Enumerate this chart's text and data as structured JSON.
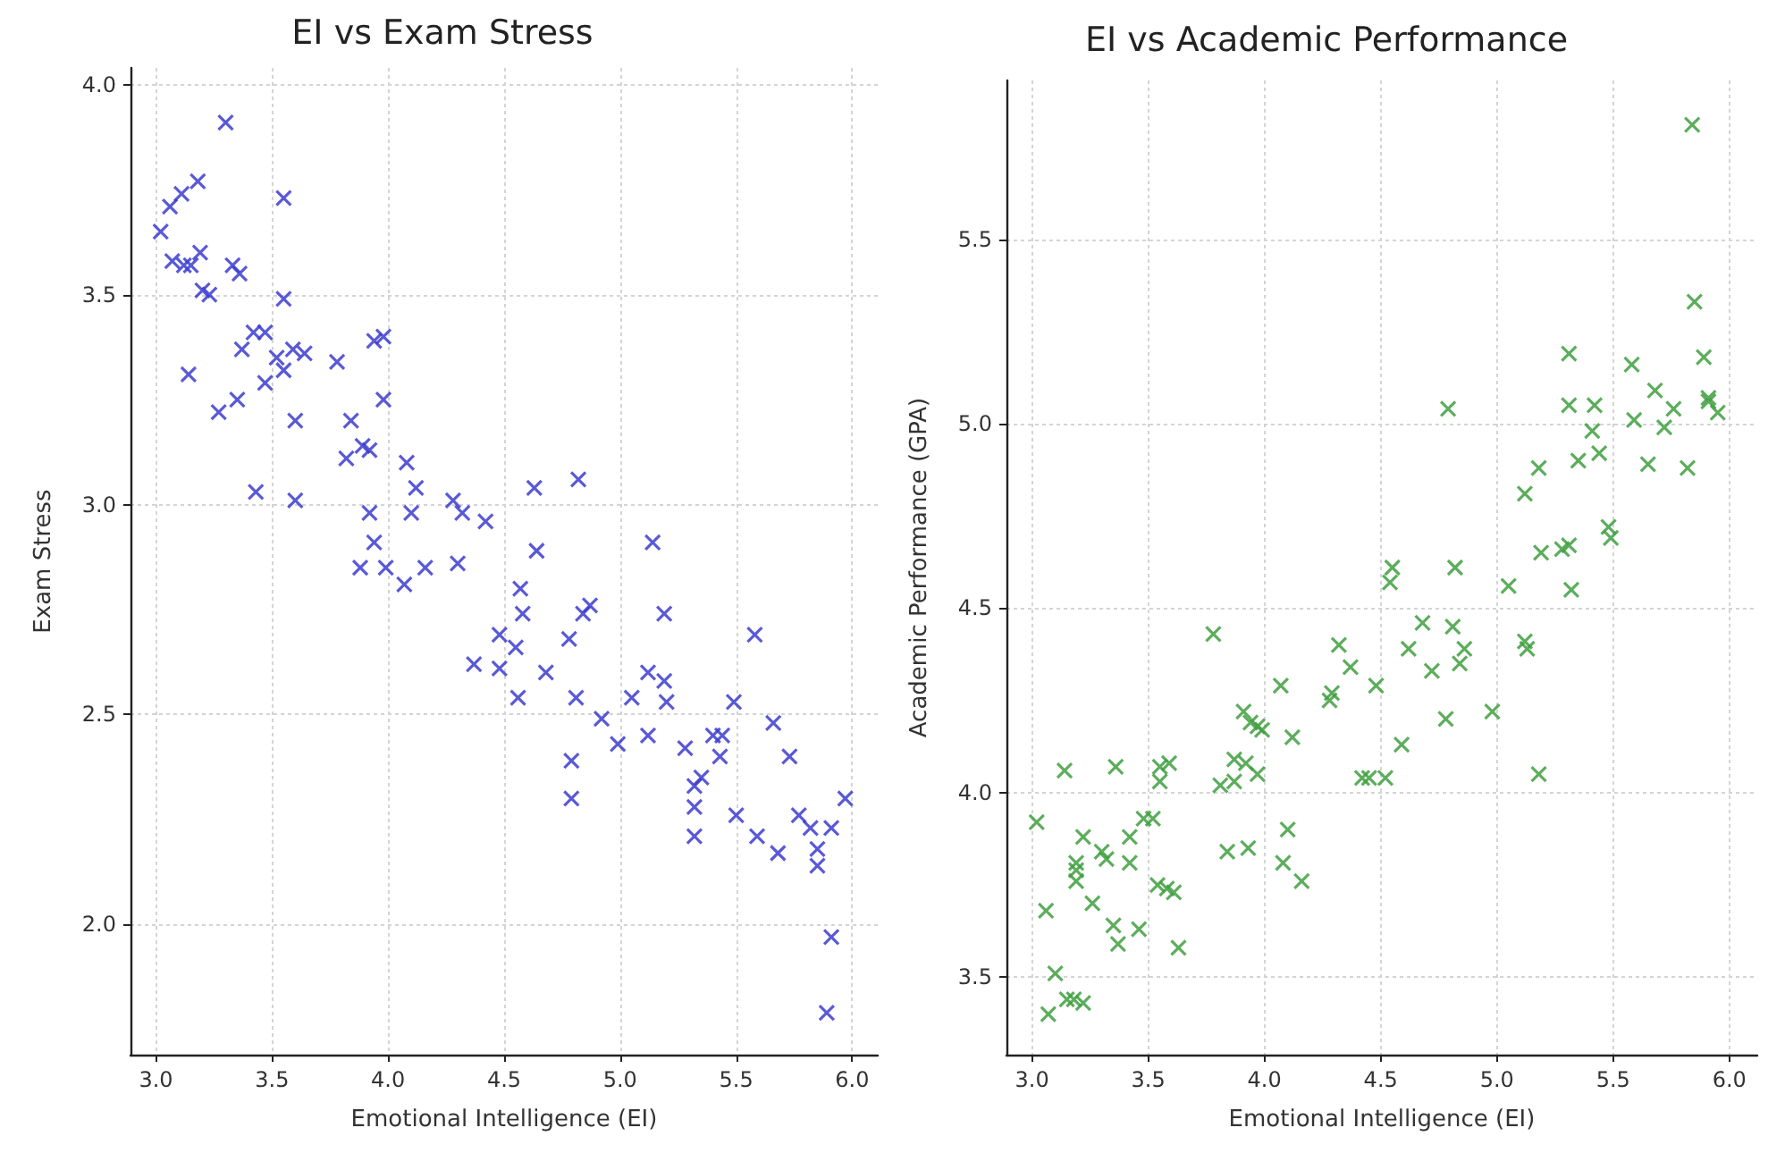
{
  "chart_data": [
    {
      "type": "scatter",
      "title": "EI vs Exam Stress",
      "xlabel": "Emotional Intelligence (EI)",
      "ylabel": "Exam Stress",
      "marker": "cross",
      "grid": true,
      "legend": false,
      "xlim": [
        2.89,
        6.11
      ],
      "ylim": [
        1.69,
        4.04
      ],
      "xticks": [
        {
          "value": 3,
          "label": "3.0"
        },
        {
          "value": 3.5,
          "label": "3.5"
        },
        {
          "value": 4,
          "label": "4.0"
        },
        {
          "value": 4.5,
          "label": "4.5"
        },
        {
          "value": 5,
          "label": "5.0"
        },
        {
          "value": 5.5,
          "label": "5.5"
        },
        {
          "value": 6,
          "label": "6.0"
        }
      ],
      "yticks": [
        {
          "value": 2,
          "label": "2.0"
        },
        {
          "value": 2.5,
          "label": "2.5"
        },
        {
          "value": 3,
          "label": "3.0"
        },
        {
          "value": 3.5,
          "label": "3.5"
        },
        {
          "value": 4,
          "label": "4.0"
        }
      ],
      "series": [
        {
          "color": "#3c3cd0",
          "x": [
            3.02,
            3.06,
            3.11,
            3.18,
            3.3,
            3.55,
            3.07,
            3.12,
            3.15,
            3.19,
            3.2,
            3.23,
            3.33,
            3.36,
            3.55,
            3.14,
            3.27,
            3.35,
            3.37,
            3.42,
            3.47,
            3.47,
            3.52,
            3.55,
            3.59,
            3.64,
            3.43,
            3.6,
            3.6,
            3.78,
            3.84,
            3.82,
            3.89,
            3.92,
            3.94,
            3.98,
            3.98,
            3.92,
            3.94,
            3.88,
            3.99,
            4.08,
            4.12,
            4.1,
            4.28,
            4.32,
            4.42,
            4.16,
            4.3,
            4.07,
            4.63,
            4.82,
            4.64,
            5.14,
            5.19,
            4.57,
            4.58,
            4.84,
            4.87,
            4.48,
            4.55,
            4.37,
            4.48,
            4.68,
            4.78,
            4.56,
            4.81,
            4.92,
            4.99,
            5.05,
            5.12,
            5.12,
            5.19,
            5.2,
            4.79,
            4.79,
            5.28,
            5.32,
            5.35,
            5.32,
            5.32,
            5.4,
            5.44,
            5.43,
            5.49,
            5.58,
            5.66,
            5.73,
            5.5,
            5.59,
            5.68,
            5.77,
            5.82,
            5.91,
            5.85,
            5.85,
            5.97,
            5.91,
            5.89
          ],
          "values": [
            3.65,
            3.71,
            3.74,
            3.77,
            3.91,
            3.73,
            3.58,
            3.57,
            3.57,
            3.6,
            3.51,
            3.5,
            3.57,
            3.55,
            3.49,
            3.31,
            3.22,
            3.25,
            3.37,
            3.41,
            3.41,
            3.29,
            3.35,
            3.32,
            3.37,
            3.36,
            3.03,
            3.01,
            3.2,
            3.34,
            3.2,
            3.11,
            3.14,
            3.13,
            3.39,
            3.4,
            3.25,
            2.98,
            2.91,
            2.85,
            2.85,
            3.1,
            3.04,
            2.98,
            3.01,
            2.98,
            2.96,
            2.85,
            2.86,
            2.81,
            3.04,
            3.06,
            2.89,
            2.91,
            2.74,
            2.8,
            2.74,
            2.74,
            2.76,
            2.69,
            2.66,
            2.62,
            2.61,
            2.6,
            2.68,
            2.54,
            2.54,
            2.49,
            2.43,
            2.54,
            2.45,
            2.6,
            2.58,
            2.53,
            2.39,
            2.3,
            2.42,
            2.33,
            2.35,
            2.28,
            2.21,
            2.45,
            2.45,
            2.4,
            2.53,
            2.69,
            2.48,
            2.4,
            2.26,
            2.21,
            2.17,
            2.26,
            2.23,
            2.23,
            2.18,
            2.14,
            2.3,
            1.97,
            1.79
          ]
        }
      ]
    },
    {
      "type": "scatter",
      "title": "EI vs Academic Performance",
      "xlabel": "Emotional Intelligence (EI)",
      "ylabel": "Academic Performance (GPA)",
      "marker": "cross",
      "grid": true,
      "legend": false,
      "xlim": [
        2.89,
        6.12
      ],
      "ylim": [
        3.29,
        5.93
      ],
      "xticks": [
        {
          "value": 3,
          "label": "3.0"
        },
        {
          "value": 3.5,
          "label": "3.5"
        },
        {
          "value": 4,
          "label": "4.0"
        },
        {
          "value": 4.5,
          "label": "4.5"
        },
        {
          "value": 5,
          "label": "5.0"
        },
        {
          "value": 5.5,
          "label": "5.5"
        },
        {
          "value": 6,
          "label": "6.0"
        }
      ],
      "yticks": [
        {
          "value": 3.5,
          "label": "3.5"
        },
        {
          "value": 4,
          "label": "4.0"
        },
        {
          "value": 4.5,
          "label": "4.5"
        },
        {
          "value": 5,
          "label": "5.0"
        },
        {
          "value": 5.5,
          "label": "5.5"
        }
      ],
      "series": [
        {
          "color": "#3f9f3f",
          "x": [
            3.02,
            3.06,
            3.1,
            3.07,
            3.15,
            3.18,
            3.22,
            3.14,
            3.19,
            3.19,
            3.19,
            3.22,
            3.26,
            3.3,
            3.32,
            3.35,
            3.37,
            3.36,
            3.42,
            3.42,
            3.46,
            3.48,
            3.52,
            3.55,
            3.55,
            3.59,
            3.54,
            3.58,
            3.61,
            3.63,
            3.78,
            3.84,
            3.81,
            3.87,
            3.87,
            3.92,
            3.93,
            3.91,
            3.94,
            3.97,
            3.99,
            3.97,
            4.07,
            4.12,
            4.1,
            4.08,
            4.16,
            4.28,
            4.29,
            4.32,
            4.37,
            4.48,
            4.42,
            4.45,
            4.52,
            5.84,
            5.85,
            5.31,
            5.58,
            5.89,
            4.79,
            5.31,
            5.42,
            5.68,
            5.76,
            5.91,
            5.91,
            5.95,
            5.41,
            5.59,
            5.72,
            5.44,
            5.35,
            5.65,
            5.82,
            5.18,
            5.12,
            5.48,
            5.49,
            5.19,
            5.28,
            5.31,
            5.32,
            5.05,
            4.55,
            4.54,
            4.82,
            4.68,
            4.81,
            4.62,
            4.86,
            5.12,
            5.13,
            4.72,
            4.84,
            4.59,
            5.18,
            4.98,
            4.78
          ],
          "values": [
            3.92,
            3.68,
            3.51,
            3.4,
            3.44,
            3.44,
            3.43,
            4.06,
            3.81,
            3.79,
            3.76,
            3.88,
            3.7,
            3.84,
            3.82,
            3.64,
            3.59,
            4.07,
            3.88,
            3.81,
            3.63,
            3.93,
            3.93,
            4.07,
            4.03,
            4.08,
            3.75,
            3.74,
            3.73,
            3.58,
            4.43,
            3.84,
            4.02,
            4.03,
            4.09,
            4.08,
            3.85,
            4.22,
            4.19,
            4.18,
            4.17,
            4.05,
            4.29,
            4.15,
            3.9,
            3.81,
            3.76,
            4.25,
            4.27,
            4.4,
            4.34,
            4.29,
            4.04,
            4.04,
            4.04,
            5.81,
            5.33,
            5.19,
            5.16,
            5.18,
            5.04,
            5.05,
            5.05,
            5.09,
            5.04,
            5.07,
            5.06,
            5.03,
            4.98,
            5.01,
            4.99,
            4.92,
            4.9,
            4.89,
            4.88,
            4.88,
            4.81,
            4.72,
            4.69,
            4.65,
            4.66,
            4.67,
            4.55,
            4.56,
            4.61,
            4.57,
            4.61,
            4.46,
            4.45,
            4.39,
            4.39,
            4.41,
            4.39,
            4.33,
            4.35,
            4.13,
            4.05,
            4.22,
            4.2
          ]
        }
      ]
    }
  ]
}
